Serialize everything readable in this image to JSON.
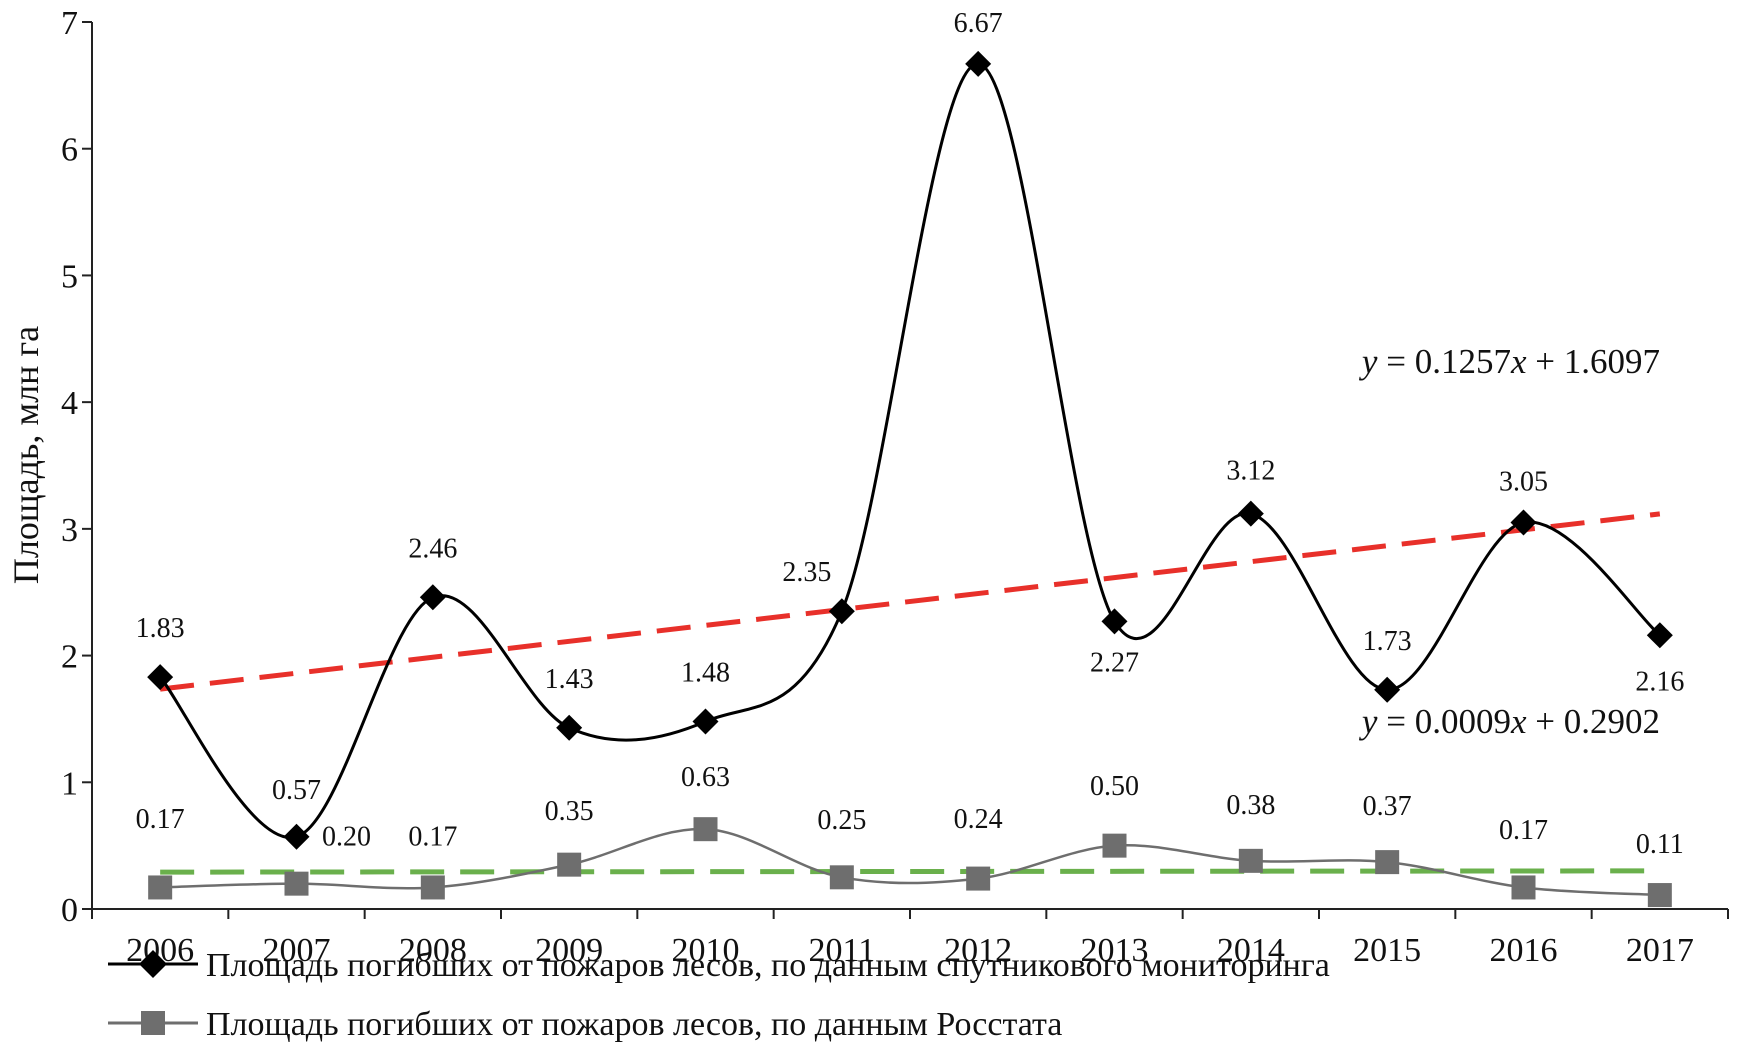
{
  "chart_data": {
    "type": "line",
    "title": "",
    "xlabel": "",
    "ylabel": "Площадь, млн га",
    "ylim": [
      0,
      7
    ],
    "yticks": [
      "0",
      "1",
      "2",
      "3",
      "4",
      "5",
      "6",
      "7"
    ],
    "categories": [
      "2006",
      "2007",
      "2008",
      "2009",
      "2010",
      "2011",
      "2012",
      "2013",
      "2014",
      "2015",
      "2016",
      "2017"
    ],
    "series": [
      {
        "name": "Площадь погибших от пожаров лесов, по данным спутникового мониторинга",
        "marker": "diamond",
        "color": "#000000",
        "values": [
          1.83,
          0.57,
          2.46,
          1.43,
          1.48,
          2.35,
          6.67,
          2.27,
          3.12,
          1.73,
          3.05,
          2.16
        ],
        "labels": [
          "1.83",
          "0.57",
          "2.46",
          "1.43",
          "1.48",
          "2.35",
          "6.67",
          "2.27",
          "3.12",
          "1.73",
          "3.05",
          "2.16"
        ]
      },
      {
        "name": "Площадь погибших от пожаров лесов, по данным Росстата",
        "marker": "square",
        "color": "#6e6e6e",
        "values": [
          0.17,
          0.2,
          0.17,
          0.35,
          0.63,
          0.25,
          0.24,
          0.5,
          0.38,
          0.37,
          0.17,
          0.11
        ],
        "labels": [
          "0.17",
          "0.20",
          "0.17",
          "0.35",
          "0.63",
          "0.25",
          "0.24",
          "0.50",
          "0.38",
          "0.37",
          "0.17",
          "0.11"
        ]
      }
    ],
    "trendlines": [
      {
        "series": 0,
        "slope": 0.1257,
        "intercept": 1.6097,
        "color": "#e8302a",
        "equation_prefix": "y",
        "equation_body": " = 0.1257",
        "equation_var": "x",
        "equation_suffix": " + 1.6097"
      },
      {
        "series": 1,
        "slope": 0.0009,
        "intercept": 0.2902,
        "color": "#6ab04c",
        "equation_prefix": "y",
        "equation_body": " = 0.0009",
        "equation_var": "x",
        "equation_suffix": " + 0.2902"
      }
    ],
    "legend_position": "bottom"
  }
}
